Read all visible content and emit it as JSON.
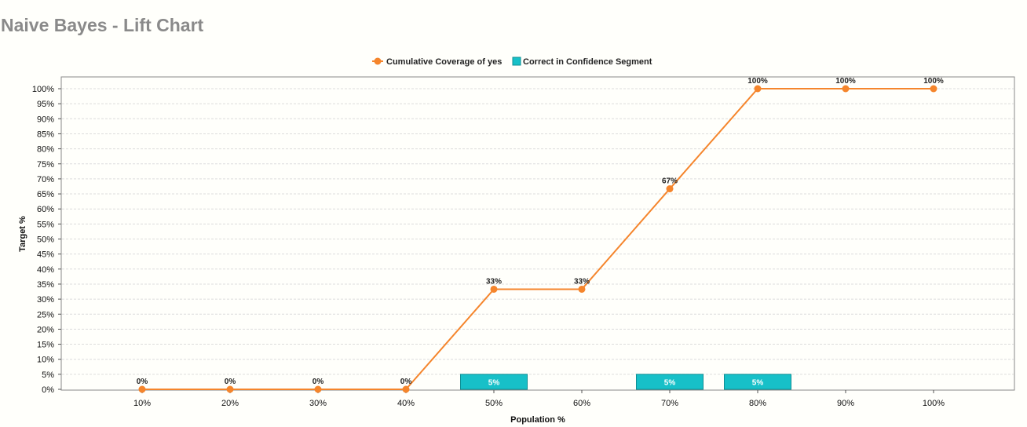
{
  "page": {
    "title": "Naive Bayes - Lift Chart"
  },
  "colors": {
    "line": "#f5852c",
    "bar": "#17c0c8",
    "bar_border": "#0f8f95",
    "grid": "#dcdcdc",
    "axis": "#555555"
  },
  "chart_data": {
    "type": "line",
    "xlabel": "Population %",
    "ylabel": "Target %",
    "ylim": [
      0,
      100
    ],
    "grid": true,
    "legend_position": "top-center",
    "categories": [
      "10%",
      "20%",
      "30%",
      "40%",
      "50%",
      "60%",
      "70%",
      "80%",
      "90%",
      "100%"
    ],
    "y_ticks": [
      "0%",
      "5%",
      "10%",
      "15%",
      "20%",
      "25%",
      "30%",
      "35%",
      "40%",
      "45%",
      "50%",
      "55%",
      "60%",
      "65%",
      "70%",
      "75%",
      "80%",
      "85%",
      "90%",
      "95%",
      "100%"
    ],
    "series": [
      {
        "name": "Cumulative Coverage of yes",
        "kind": "line",
        "values": [
          0,
          0,
          0,
          0,
          33.3,
          33.3,
          66.7,
          100,
          100,
          100
        ],
        "labels": [
          "0%",
          "0%",
          "0%",
          "0%",
          "33%",
          "33%",
          "67%",
          "100%",
          "100%",
          "100%"
        ]
      },
      {
        "name": "Correct in Confidence Segment",
        "kind": "bar",
        "values": [
          0,
          0,
          0,
          0,
          5,
          0,
          5,
          5,
          0,
          0
        ],
        "labels": [
          "",
          "",
          "",
          "",
          "5%",
          "",
          "5%",
          "5%",
          "",
          ""
        ]
      }
    ]
  }
}
